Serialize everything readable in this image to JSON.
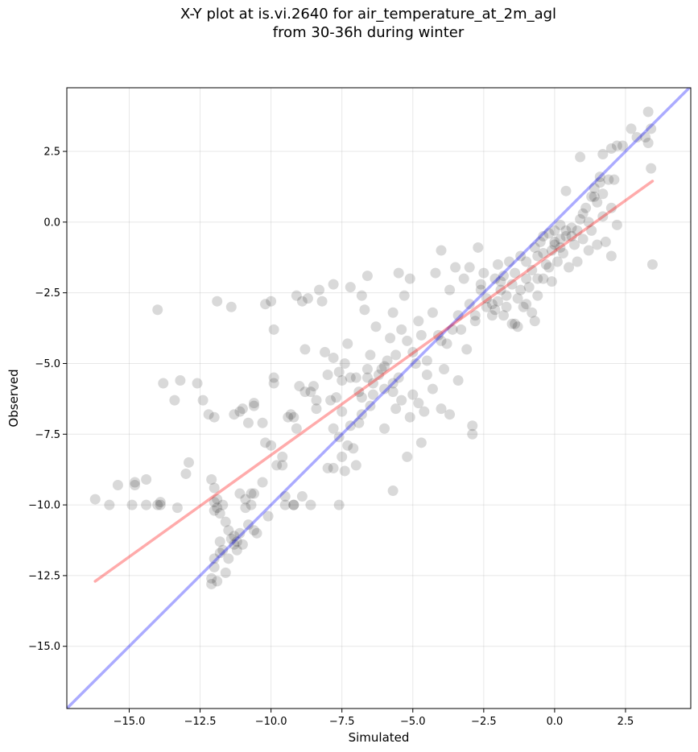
{
  "chart_data": {
    "type": "scatter",
    "title_line1": "X-Y plot at is.vi.2640 for air_temperature_at_2m_agl",
    "title_line2": "from 30-36h during winter",
    "xlabel": "Simulated",
    "ylabel": "Observed",
    "xlim": [
      -17.2,
      4.8
    ],
    "ylim": [
      -17.2,
      4.75
    ],
    "xticks": [
      -15.0,
      -12.5,
      -10.0,
      -7.5,
      -5.0,
      -2.5,
      0.0,
      2.5
    ],
    "yticks": [
      -15.0,
      -12.5,
      -10.0,
      -7.5,
      -5.0,
      -2.5,
      0.0,
      2.5
    ],
    "xtick_labels": [
      "−15.0",
      "−12.5",
      "−10.0",
      "−7.5",
      "−5.0",
      "−2.5",
      "0.0",
      "2.5"
    ],
    "ytick_labels": [
      "−15.0",
      "−12.5",
      "−10.0",
      "−7.5",
      "−5.0",
      "−2.5",
      "0.0",
      "2.5"
    ],
    "grid": true,
    "point_color": "#000000",
    "point_alpha": 0.15,
    "identity_line": {
      "x": [
        -17.2,
        4.8
      ],
      "y": [
        -17.2,
        4.8
      ],
      "color": "#0000ff",
      "alpha": 0.33
    },
    "regression_line": {
      "x": [
        -16.2,
        3.45
      ],
      "y": [
        -12.7,
        1.45
      ],
      "color": "#ff0000",
      "alpha": 0.33
    },
    "points": [
      [
        -16.2,
        -9.8
      ],
      [
        -15.7,
        -10.0
      ],
      [
        -15.4,
        -9.3
      ],
      [
        -14.9,
        -10.0
      ],
      [
        -14.8,
        -9.3
      ],
      [
        -14.8,
        -9.2
      ],
      [
        -14.4,
        -10.0
      ],
      [
        -14.4,
        -9.1
      ],
      [
        -14.0,
        -10.0
      ],
      [
        -13.9,
        -9.9
      ],
      [
        -13.9,
        -10.0
      ],
      [
        -13.3,
        -10.1
      ],
      [
        -13.0,
        -8.9
      ],
      [
        -12.9,
        -8.5
      ],
      [
        -14.0,
        -3.1
      ],
      [
        -13.8,
        -5.7
      ],
      [
        -13.4,
        -6.3
      ],
      [
        -13.2,
        -5.6
      ],
      [
        -12.6,
        -5.7
      ],
      [
        -12.4,
        -6.3
      ],
      [
        -12.2,
        -6.8
      ],
      [
        -12.0,
        -6.9
      ],
      [
        -11.9,
        -2.8
      ],
      [
        -11.4,
        -3.0
      ],
      [
        -11.3,
        -6.8
      ],
      [
        -11.1,
        -6.7
      ],
      [
        -11.0,
        -6.6
      ],
      [
        -10.8,
        -7.1
      ],
      [
        -10.6,
        -6.4
      ],
      [
        -10.6,
        -6.5
      ],
      [
        -10.2,
        -2.9
      ],
      [
        -10.0,
        -2.8
      ],
      [
        -9.9,
        -3.8
      ],
      [
        -9.9,
        -5.5
      ],
      [
        -9.9,
        -5.7
      ],
      [
        -10.3,
        -7.1
      ],
      [
        -10.2,
        -7.8
      ],
      [
        -10.0,
        -7.9
      ],
      [
        -9.8,
        -8.6
      ],
      [
        -9.6,
        -8.3
      ],
      [
        -9.6,
        -8.6
      ],
      [
        -9.4,
        -6.9
      ],
      [
        -9.2,
        -6.9
      ],
      [
        -9.1,
        -7.3
      ],
      [
        -9.1,
        -2.6
      ],
      [
        -8.9,
        -2.8
      ],
      [
        -8.7,
        -2.7
      ],
      [
        -8.3,
        -2.4
      ],
      [
        -8.2,
        -2.8
      ],
      [
        -7.8,
        -2.2
      ],
      [
        -7.2,
        -2.3
      ],
      [
        -6.8,
        -2.6
      ],
      [
        -6.6,
        -1.9
      ],
      [
        -9.0,
        -5.8
      ],
      [
        -8.8,
        -6.0
      ],
      [
        -8.8,
        -4.5
      ],
      [
        -8.6,
        -6.0
      ],
      [
        -8.4,
        -6.3
      ],
      [
        -8.4,
        -6.6
      ],
      [
        -8.1,
        -4.6
      ],
      [
        -8.0,
        -5.4
      ],
      [
        -7.9,
        -6.3
      ],
      [
        -7.8,
        -4.8
      ],
      [
        -7.7,
        -6.2
      ],
      [
        -7.6,
        -5.3
      ],
      [
        -7.5,
        -5.6
      ],
      [
        -7.5,
        -6.7
      ],
      [
        -7.4,
        -5.0
      ],
      [
        -7.3,
        -4.3
      ],
      [
        -7.2,
        -5.5
      ],
      [
        -7.0,
        -5.5
      ],
      [
        -6.9,
        -6.0
      ],
      [
        -6.8,
        -6.2
      ],
      [
        -6.8,
        -6.8
      ],
      [
        -6.7,
        -3.1
      ],
      [
        -6.6,
        -5.5
      ],
      [
        -6.5,
        -4.7
      ],
      [
        -6.5,
        -6.5
      ],
      [
        -6.4,
        -5.7
      ],
      [
        -6.3,
        -3.7
      ],
      [
        -6.2,
        -5.4
      ],
      [
        -6.1,
        -5.2
      ],
      [
        -6.0,
        -5.1
      ],
      [
        -6.0,
        -5.9
      ],
      [
        -5.9,
        -4.9
      ],
      [
        -5.8,
        -4.1
      ],
      [
        -5.7,
        -5.7
      ],
      [
        -5.7,
        -6.0
      ],
      [
        -5.7,
        -3.2
      ],
      [
        -5.6,
        -4.7
      ],
      [
        -5.5,
        -5.5
      ],
      [
        -5.5,
        -1.8
      ],
      [
        -5.4,
        -3.8
      ],
      [
        -5.3,
        -2.6
      ],
      [
        -5.1,
        -2.0
      ],
      [
        -5.2,
        -4.2
      ],
      [
        -5.0,
        -6.1
      ],
      [
        -5.0,
        -4.6
      ],
      [
        -4.9,
        -5.0
      ],
      [
        -4.8,
        -3.5
      ],
      [
        -4.7,
        -4.0
      ],
      [
        -4.6,
        -6.7
      ],
      [
        -4.5,
        -5.4
      ],
      [
        -4.5,
        -4.9
      ],
      [
        -4.3,
        -3.2
      ],
      [
        -4.3,
        -5.9
      ],
      [
        -4.2,
        -1.8
      ],
      [
        -4.0,
        -4.2
      ],
      [
        -4.0,
        -1.0
      ],
      [
        -3.9,
        -5.2
      ],
      [
        -3.8,
        -4.3
      ],
      [
        -3.7,
        -2.4
      ],
      [
        -3.6,
        -3.8
      ],
      [
        -3.5,
        -1.6
      ],
      [
        -3.4,
        -5.6
      ],
      [
        -3.4,
        -3.3
      ],
      [
        -3.2,
        -2.0
      ],
      [
        -3.1,
        -4.5
      ],
      [
        -3.0,
        -2.9
      ],
      [
        -3.0,
        -1.6
      ],
      [
        -2.8,
        -3.5
      ],
      [
        -2.7,
        -0.9
      ],
      [
        -2.6,
        -2.4
      ],
      [
        -2.5,
        -1.8
      ],
      [
        -2.4,
        -2.7
      ],
      [
        -2.2,
        -3.3
      ],
      [
        -2.1,
        -2.0
      ],
      [
        -2.0,
        -1.5
      ],
      [
        -2.0,
        -2.8
      ],
      [
        -1.9,
        -2.4
      ],
      [
        -1.8,
        -3.3
      ],
      [
        -1.8,
        -1.9
      ],
      [
        -1.7,
        -2.6
      ],
      [
        -1.6,
        -1.4
      ],
      [
        -1.5,
        -2.2
      ],
      [
        -1.4,
        -3.6
      ],
      [
        -1.4,
        -1.8
      ],
      [
        -1.3,
        -2.7
      ],
      [
        -1.2,
        -1.2
      ],
      [
        -1.1,
        -3.0
      ],
      [
        -1.0,
        -2.0
      ],
      [
        -1.0,
        -1.4
      ],
      [
        -0.9,
        -2.3
      ],
      [
        -0.8,
        -1.7
      ],
      [
        -0.7,
        -0.9
      ],
      [
        -0.7,
        -3.5
      ],
      [
        -0.6,
        -2.6
      ],
      [
        -0.6,
        -1.2
      ],
      [
        -0.5,
        -0.7
      ],
      [
        -0.4,
        -2.0
      ],
      [
        -0.4,
        -0.5
      ],
      [
        -0.3,
        -1.5
      ],
      [
        -0.2,
        -0.4
      ],
      [
        -0.1,
        -1.0
      ],
      [
        -0.1,
        -2.1
      ],
      [
        0.0,
        -0.8
      ],
      [
        0.0,
        -0.3
      ],
      [
        0.1,
        -1.4
      ],
      [
        0.2,
        -0.6
      ],
      [
        0.2,
        -0.1
      ],
      [
        0.3,
        -1.1
      ],
      [
        0.4,
        -0.5
      ],
      [
        0.5,
        -1.6
      ],
      [
        0.6,
        -0.2
      ],
      [
        0.7,
        -0.8
      ],
      [
        0.8,
        -1.4
      ],
      [
        0.9,
        0.1
      ],
      [
        1.0,
        -0.6
      ],
      [
        1.1,
        0.5
      ],
      [
        1.2,
        -1.0
      ],
      [
        1.3,
        0.9
      ],
      [
        1.3,
        -0.3
      ],
      [
        1.4,
        1.2
      ],
      [
        1.5,
        0.7
      ],
      [
        1.5,
        -0.8
      ],
      [
        1.6,
        1.4
      ],
      [
        1.7,
        1.0
      ],
      [
        1.7,
        0.2
      ],
      [
        1.8,
        -0.7
      ],
      [
        1.9,
        1.5
      ],
      [
        2.0,
        0.5
      ],
      [
        2.0,
        -1.2
      ],
      [
        2.1,
        1.5
      ],
      [
        2.2,
        -0.1
      ],
      [
        1.7,
        2.4
      ],
      [
        2.0,
        2.6
      ],
      [
        2.2,
        2.7
      ],
      [
        2.4,
        2.7
      ],
      [
        2.7,
        3.3
      ],
      [
        2.9,
        3.0
      ],
      [
        3.2,
        3.0
      ],
      [
        3.3,
        2.8
      ],
      [
        3.3,
        3.9
      ],
      [
        3.4,
        3.3
      ],
      [
        3.4,
        1.9
      ],
      [
        3.45,
        -1.5
      ],
      [
        0.9,
        2.3
      ],
      [
        0.4,
        1.1
      ],
      [
        -2.8,
        -3.3
      ],
      [
        -2.6,
        -2.2
      ],
      [
        -2.4,
        -3.0
      ],
      [
        -2.2,
        -2.9
      ],
      [
        -2.1,
        -3.1
      ],
      [
        -1.9,
        -2.1
      ],
      [
        -1.7,
        -3.0
      ],
      [
        -1.5,
        -3.6
      ],
      [
        -1.3,
        -3.7
      ],
      [
        -1.2,
        -2.4
      ],
      [
        -1.0,
        -2.9
      ],
      [
        -0.8,
        -3.2
      ],
      [
        -0.6,
        -2.0
      ],
      [
        -0.4,
        -1.1
      ],
      [
        -0.2,
        -1.6
      ],
      [
        0.0,
        -0.7
      ],
      [
        0.2,
        -0.9
      ],
      [
        0.4,
        -0.3
      ],
      [
        0.6,
        -0.5
      ],
      [
        0.8,
        -0.3
      ],
      [
        1.0,
        0.3
      ],
      [
        1.2,
        0.0
      ],
      [
        1.4,
        0.9
      ],
      [
        1.6,
        1.6
      ],
      [
        -12.1,
        -9.1
      ],
      [
        -12.0,
        -9.4
      ],
      [
        -12.0,
        -9.9
      ],
      [
        -12.0,
        -10.2
      ],
      [
        -11.9,
        -9.8
      ],
      [
        -11.9,
        -10.1
      ],
      [
        -11.8,
        -10.3
      ],
      [
        -11.8,
        -11.3
      ],
      [
        -11.7,
        -10.0
      ],
      [
        -11.7,
        -11.6
      ],
      [
        -11.6,
        -10.6
      ],
      [
        -11.6,
        -12.4
      ],
      [
        -11.5,
        -11.9
      ],
      [
        -11.5,
        -10.9
      ],
      [
        -11.4,
        -11.2
      ],
      [
        -11.3,
        -11.4
      ],
      [
        -11.3,
        -11.1
      ],
      [
        -11.2,
        -11.3
      ],
      [
        -11.2,
        -11.6
      ],
      [
        -11.1,
        -9.6
      ],
      [
        -11.1,
        -11.0
      ],
      [
        -11.0,
        -11.4
      ],
      [
        -10.9,
        -9.8
      ],
      [
        -10.9,
        -10.1
      ],
      [
        -10.8,
        -10.7
      ],
      [
        -10.7,
        -9.6
      ],
      [
        -10.7,
        -10.0
      ],
      [
        -10.6,
        -10.9
      ],
      [
        -10.6,
        -9.6
      ],
      [
        -10.5,
        -11.0
      ],
      [
        -12.1,
        -12.6
      ],
      [
        -12.1,
        -12.8
      ],
      [
        -12.0,
        -12.2
      ],
      [
        -12.0,
        -11.9
      ],
      [
        -11.9,
        -12.7
      ],
      [
        -11.8,
        -11.7
      ],
      [
        -10.3,
        -9.2
      ],
      [
        -10.1,
        -10.4
      ],
      [
        -9.5,
        -9.7
      ],
      [
        -9.2,
        -10.0
      ],
      [
        -8.9,
        -9.7
      ],
      [
        -8.6,
        -10.0
      ],
      [
        -8.0,
        -8.7
      ],
      [
        -7.8,
        -8.7
      ],
      [
        -7.5,
        -8.3
      ],
      [
        -7.4,
        -8.8
      ],
      [
        -7.3,
        -7.9
      ],
      [
        -7.1,
        -8.0
      ],
      [
        -7.0,
        -8.6
      ],
      [
        -7.6,
        -10.0
      ],
      [
        -9.5,
        -10.0
      ],
      [
        -9.2,
        -10.0
      ],
      [
        -6.0,
        -7.3
      ],
      [
        -5.7,
        -9.5
      ],
      [
        -5.2,
        -8.3
      ],
      [
        -4.7,
        -7.8
      ],
      [
        -4.0,
        -6.6
      ],
      [
        -3.7,
        -6.8
      ],
      [
        -2.9,
        -7.5
      ],
      [
        -2.9,
        -7.2
      ],
      [
        -5.4,
        -6.3
      ],
      [
        -6.4,
        -6.1
      ],
      [
        -6.9,
        -7.1
      ],
      [
        -7.6,
        -7.6
      ],
      [
        -7.8,
        -7.3
      ],
      [
        -7.2,
        -7.2
      ],
      [
        -5.6,
        -6.6
      ],
      [
        -5.1,
        -6.9
      ],
      [
        -4.8,
        -6.4
      ],
      [
        -8.5,
        -5.8
      ],
      [
        -9.3,
        -6.8
      ],
      [
        -6.6,
        -5.2
      ],
      [
        -4.1,
        -4.0
      ],
      [
        -3.3,
        -3.8
      ]
    ]
  }
}
